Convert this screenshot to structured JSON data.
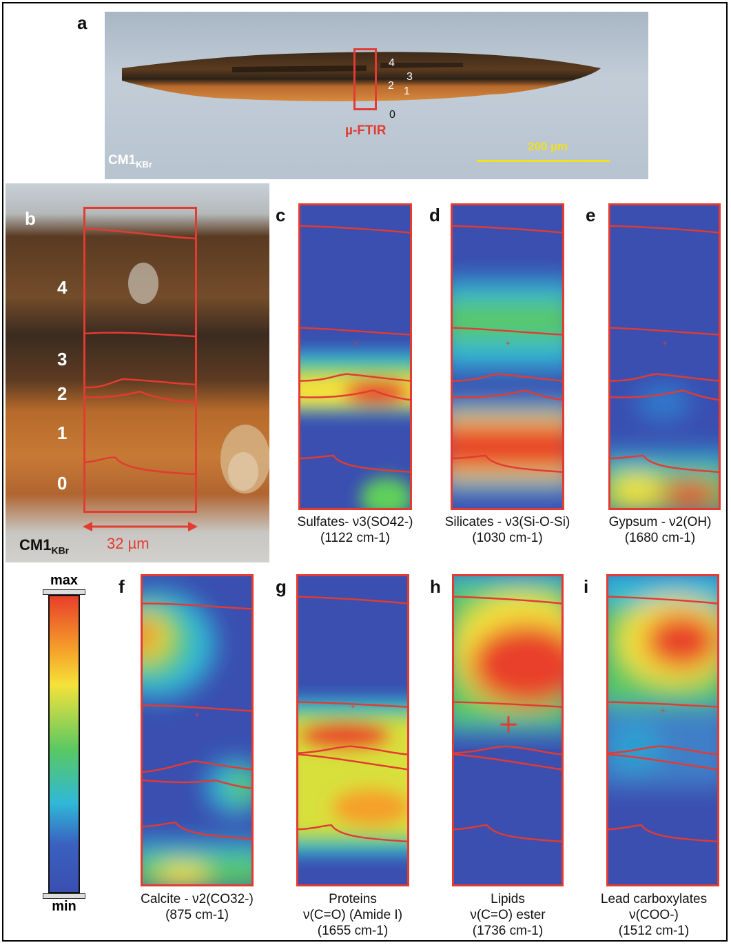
{
  "panels": {
    "a": {
      "letter": "a",
      "sample": "CM1",
      "sample_sub": "KBr",
      "method": "µ-FTIR",
      "scale": "200 µm",
      "layers": [
        "4",
        "3",
        "2",
        "1",
        "0"
      ]
    },
    "b": {
      "letter": "b",
      "sample": "CM1",
      "sample_sub": "KBr",
      "width": "32 µm",
      "layers": [
        "4",
        "3",
        "2",
        "1",
        "0"
      ]
    },
    "c": {
      "letter": "c",
      "caption_line1": "Sulfates- ν3(SO42-)",
      "caption_line2": "(1122 cm-1)"
    },
    "d": {
      "letter": "d",
      "caption_line1": "Silicates - ν3(Si-O-Si)",
      "caption_line2": "(1030 cm-1)"
    },
    "e": {
      "letter": "e",
      "caption_line1": "Gypsum - ν2(OH)",
      "caption_line2": "(1680 cm-1)"
    },
    "f": {
      "letter": "f",
      "caption_line1": "Calcite - ν2(CO32-)",
      "caption_line2": "(875 cm-1)"
    },
    "g": {
      "letter": "g",
      "caption_line1": "Proteins",
      "caption_line2": "ν(C=O) (Amide I)",
      "caption_line3": "(1655 cm-1)"
    },
    "h": {
      "letter": "h",
      "caption_line1": "Lipids",
      "caption_line2": "ν(C=O) ester",
      "caption_line3": "(1736 cm-1)"
    },
    "i": {
      "letter": "i",
      "caption_line1": "Lead carboxylates",
      "caption_line2": "ν(COO-)",
      "caption_line3": "(1512 cm-1)"
    }
  },
  "colorbar": {
    "max": "max",
    "min": "min"
  },
  "colors": {
    "outline": "#e23b32",
    "scale_bar": "#f0e020",
    "map_background": "#3a4fb0"
  }
}
